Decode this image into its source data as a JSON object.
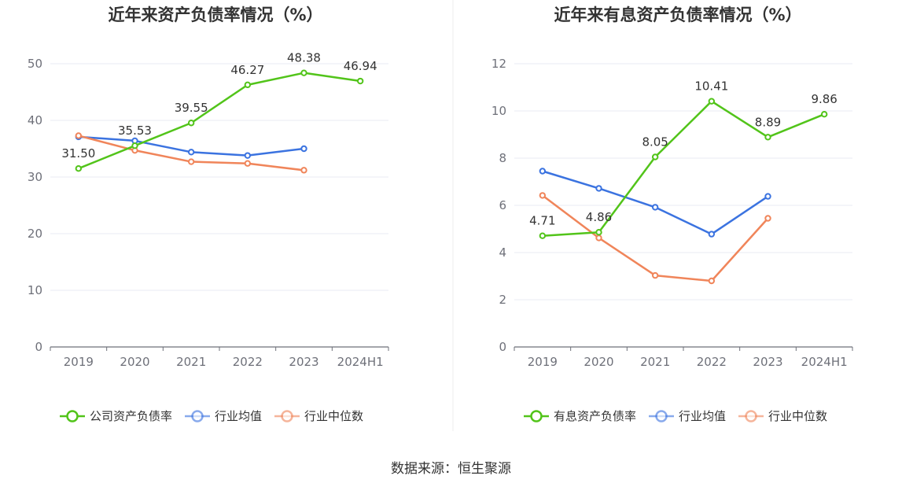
{
  "source": "数据来源：恒生聚源",
  "colors": {
    "company": "#52c41a",
    "avg": "#3b73e0",
    "median": "#f0855a"
  },
  "chart_data": [
    {
      "type": "line",
      "title": "近年来资产负债率情况（%）",
      "categories": [
        "2019",
        "2020",
        "2021",
        "2022",
        "2023",
        "2024H1"
      ],
      "ylim": [
        0,
        50
      ],
      "yticks": [
        0,
        10,
        20,
        30,
        40,
        50
      ],
      "grid": true,
      "legend_position": "bottom",
      "series": [
        {
          "name": "公司资产负债率",
          "key": "company",
          "labeled": true,
          "values": [
            31.5,
            35.53,
            39.55,
            46.27,
            48.38,
            46.94
          ],
          "labels": [
            "31.50",
            "35.53",
            "39.55",
            "46.27",
            "48.38",
            "46.94"
          ]
        },
        {
          "name": "行业均值",
          "key": "avg",
          "labeled": false,
          "values": [
            37.1,
            36.4,
            34.4,
            33.8,
            35.0,
            null
          ]
        },
        {
          "name": "行业中位数",
          "key": "median",
          "labeled": false,
          "values": [
            37.3,
            34.7,
            32.7,
            32.4,
            31.2,
            null
          ]
        }
      ]
    },
    {
      "type": "line",
      "title": "近年来有息资产负债率情况（%）",
      "categories": [
        "2019",
        "2020",
        "2021",
        "2022",
        "2023",
        "2024H1"
      ],
      "ylim": [
        0,
        12
      ],
      "yticks": [
        0,
        2,
        4,
        6,
        8,
        10,
        12
      ],
      "grid": true,
      "legend_position": "bottom",
      "series": [
        {
          "name": "有息资产负债率",
          "key": "company",
          "labeled": true,
          "values": [
            4.71,
            4.86,
            8.05,
            10.41,
            8.89,
            9.86
          ],
          "labels": [
            "4.71",
            "4.86",
            "8.05",
            "10.41",
            "8.89",
            "9.86"
          ]
        },
        {
          "name": "行业均值",
          "key": "avg",
          "labeled": false,
          "values": [
            7.45,
            6.72,
            5.92,
            4.78,
            6.38,
            null
          ]
        },
        {
          "name": "行业中位数",
          "key": "median",
          "labeled": false,
          "values": [
            6.42,
            4.62,
            3.03,
            2.8,
            5.45,
            null
          ]
        }
      ]
    }
  ]
}
